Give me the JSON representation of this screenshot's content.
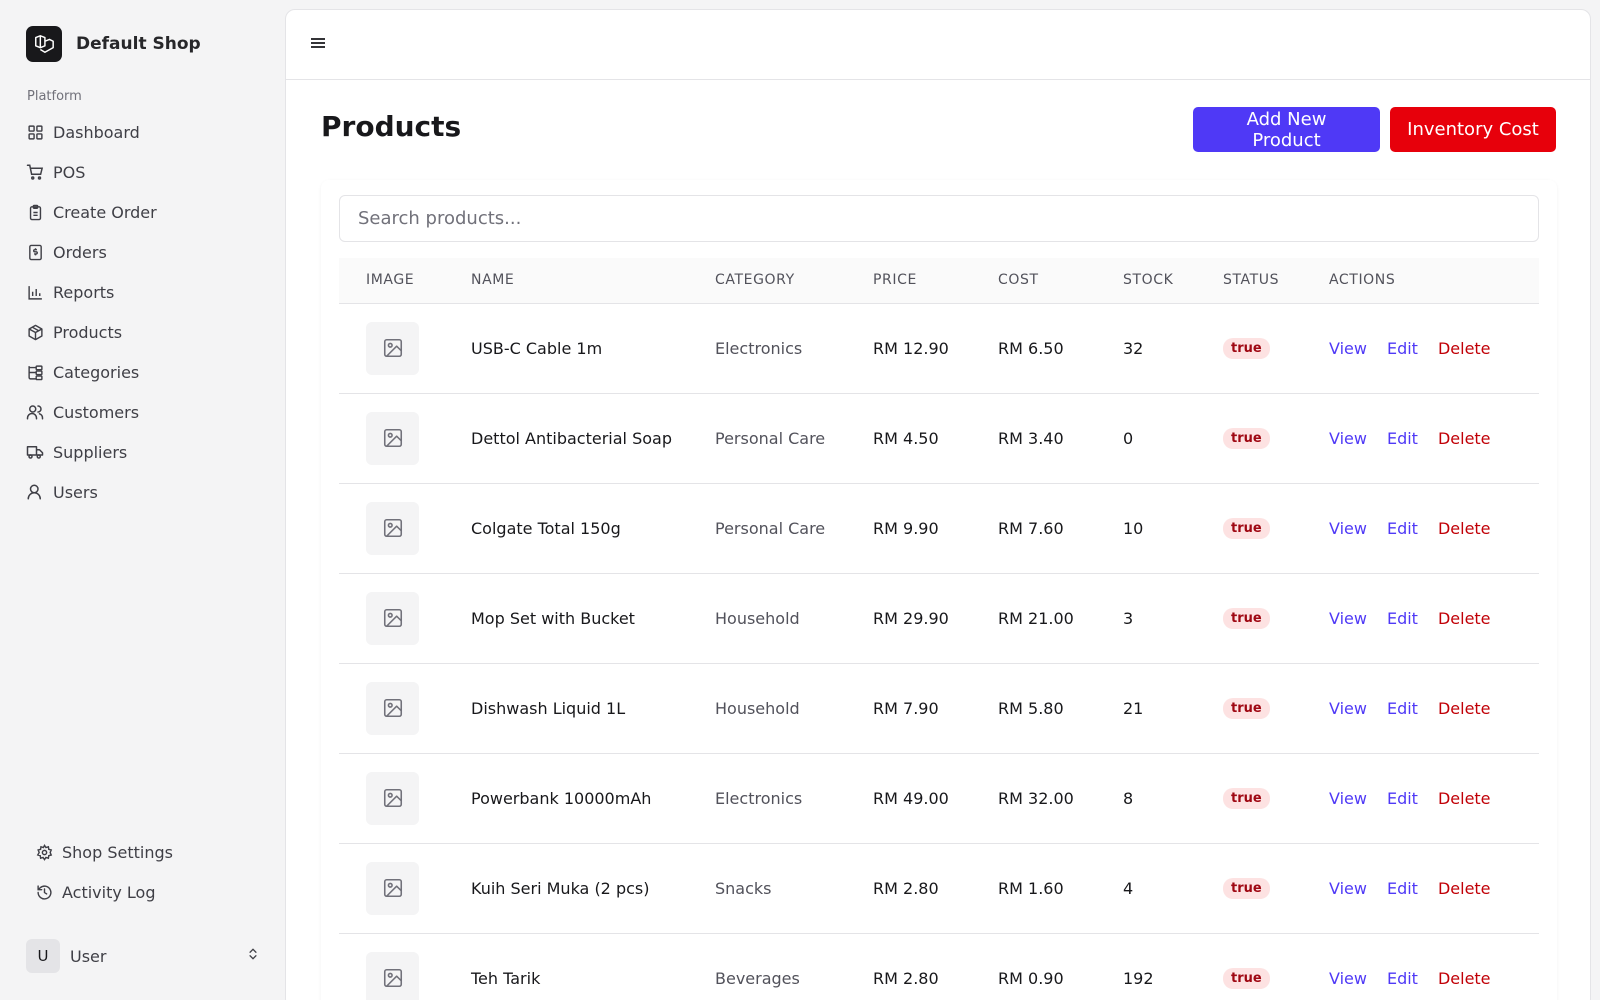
{
  "sidebar": {
    "brand": "Default Shop",
    "heading": "Platform",
    "items": [
      {
        "label": "Dashboard",
        "icon": "grid-icon"
      },
      {
        "label": "POS",
        "icon": "cart-icon"
      },
      {
        "label": "Create Order",
        "icon": "clipboard-icon"
      },
      {
        "label": "Orders",
        "icon": "receipt-icon"
      },
      {
        "label": "Reports",
        "icon": "bar-chart-icon"
      },
      {
        "label": "Products",
        "icon": "package-icon"
      },
      {
        "label": "Categories",
        "icon": "tree-icon"
      },
      {
        "label": "Customers",
        "icon": "users-icon"
      },
      {
        "label": "Suppliers",
        "icon": "truck-icon"
      },
      {
        "label": "Users",
        "icon": "user-icon"
      }
    ],
    "bottom": [
      {
        "label": "Shop Settings",
        "icon": "gear-icon"
      },
      {
        "label": "Activity Log",
        "icon": "history-icon"
      }
    ],
    "user": {
      "initial": "U",
      "name": "User"
    }
  },
  "header": {
    "title": "Products",
    "add_label": "Add New Product",
    "inventory_label": "Inventory Cost"
  },
  "search": {
    "placeholder": "Search products..."
  },
  "table": {
    "columns": [
      "IMAGE",
      "NAME",
      "CATEGORY",
      "PRICE",
      "COST",
      "STOCK",
      "STATUS",
      "ACTIONS"
    ],
    "actions": {
      "view": "View",
      "edit": "Edit",
      "delete": "Delete"
    },
    "rows": [
      {
        "name": "USB-C Cable 1m",
        "category": "Electronics",
        "price": "RM 12.90",
        "cost": "RM 6.50",
        "stock": "32",
        "status": "true"
      },
      {
        "name": "Dettol Antibacterial Soap",
        "category": "Personal Care",
        "price": "RM 4.50",
        "cost": "RM 3.40",
        "stock": "0",
        "status": "true"
      },
      {
        "name": "Colgate Total 150g",
        "category": "Personal Care",
        "price": "RM 9.90",
        "cost": "RM 7.60",
        "stock": "10",
        "status": "true"
      },
      {
        "name": "Mop Set with Bucket",
        "category": "Household",
        "price": "RM 29.90",
        "cost": "RM 21.00",
        "stock": "3",
        "status": "true"
      },
      {
        "name": "Dishwash Liquid 1L",
        "category": "Household",
        "price": "RM 7.90",
        "cost": "RM 5.80",
        "stock": "21",
        "status": "true"
      },
      {
        "name": "Powerbank 10000mAh",
        "category": "Electronics",
        "price": "RM 49.00",
        "cost": "RM 32.00",
        "stock": "8",
        "status": "true"
      },
      {
        "name": "Kuih Seri Muka (2 pcs)",
        "category": "Snacks",
        "price": "RM 2.80",
        "cost": "RM 1.60",
        "stock": "4",
        "status": "true"
      },
      {
        "name": "Teh Tarik",
        "category": "Beverages",
        "price": "RM 2.80",
        "cost": "RM 0.90",
        "stock": "192",
        "status": "true"
      }
    ]
  }
}
